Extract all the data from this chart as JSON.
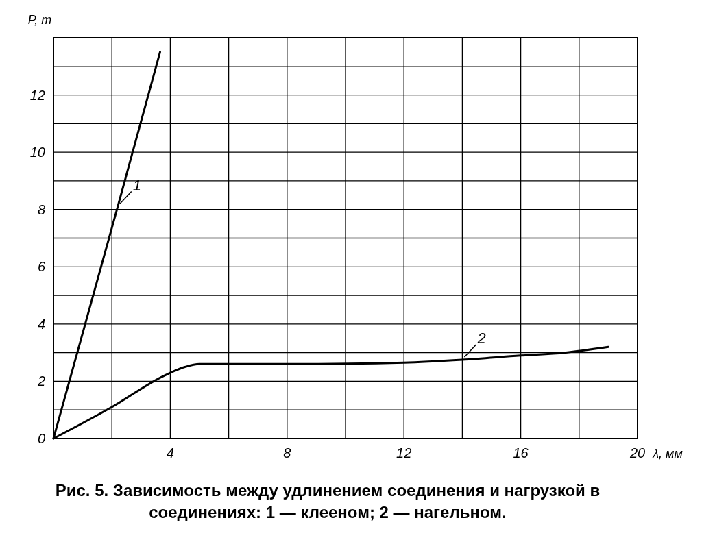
{
  "chart_data": {
    "type": "line",
    "xlabel": "λ, мм",
    "ylabel": "P, т",
    "xlim": [
      0,
      20
    ],
    "ylim": [
      0,
      14
    ],
    "xticks": [
      {
        "value": 2,
        "label": null
      },
      4,
      {
        "value": 6,
        "label": null
      },
      8,
      {
        "value": 10,
        "label": null
      },
      12,
      {
        "value": 14,
        "label": null
      },
      16,
      {
        "value": 18,
        "label": null
      },
      20
    ],
    "yticks": [
      0,
      {
        "value": 1,
        "label": null
      },
      2,
      {
        "value": 3,
        "label": null
      },
      4,
      {
        "value": 5,
        "label": null
      },
      6,
      {
        "value": 7,
        "label": null
      },
      8,
      {
        "value": 9,
        "label": null
      },
      10,
      {
        "value": 11,
        "label": null
      },
      12,
      {
        "value": 13,
        "label": null
      }
    ],
    "grid": true,
    "marker": "none",
    "line_style": "solid",
    "annotations": [
      "Рис. 5. Зависимость между удлинением соединения и нагрузкой в соединениях: 1 — клееном; 2 — нагельном."
    ],
    "series": [
      {
        "name": "1",
        "color": "#000000",
        "x": [
          0,
          2.2,
          3.65
        ],
        "values": [
          0,
          8.1,
          13.5
        ]
      },
      {
        "name": "2",
        "color": "#000000",
        "x": [
          0,
          2,
          3.8,
          4.5,
          5,
          8,
          12,
          14,
          16,
          17.5,
          19
        ],
        "values": [
          0,
          1.1,
          2.2,
          2.5,
          2.6,
          2.6,
          2.65,
          2.75,
          2.9,
          3.0,
          3.2
        ]
      }
    ]
  }
}
